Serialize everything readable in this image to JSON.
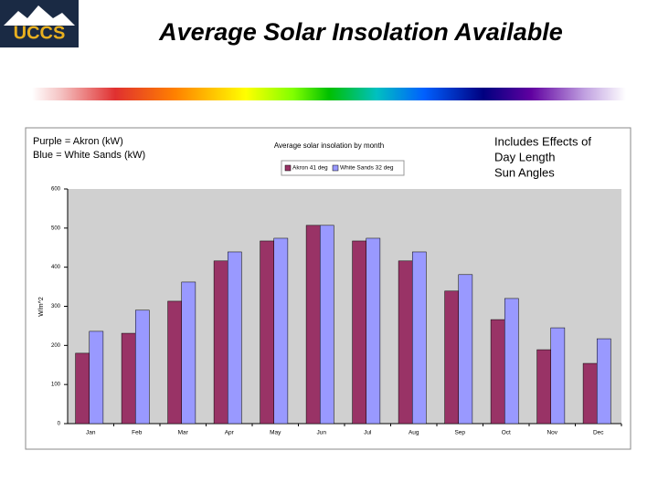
{
  "header": {
    "logo": "UCCS",
    "title": "Average Solar Insolation Available"
  },
  "notes": {
    "left": [
      "Purple = Akron (kW)",
      "Blue = White Sands (kW)"
    ],
    "right": [
      "Includes Effects of",
      "Day Length",
      "Sun Angles"
    ]
  },
  "chart_data": {
    "type": "bar",
    "title": "Average solar insolation by month",
    "y_label": "W/m^2",
    "categories": [
      "Jan",
      "Feb",
      "Mar",
      "Apr",
      "May",
      "Jun",
      "Jul",
      "Aug",
      "Sep",
      "Oct",
      "Nov",
      "Dec"
    ],
    "series": [
      {
        "name": "Akron 41 deg",
        "color": "#993366",
        "values": [
          180,
          231,
          313,
          416,
          467,
          507,
          467,
          416,
          339,
          266,
          189,
          154
        ]
      },
      {
        "name": "White Sands 32 deg",
        "color": "#9999ff",
        "values": [
          236,
          290,
          362,
          439,
          474,
          507,
          474,
          439,
          381,
          320,
          245,
          217
        ]
      }
    ],
    "ylim": [
      0,
      600
    ],
    "yticks": [
      0,
      100,
      200,
      300,
      400,
      500,
      600
    ],
    "grid": false
  }
}
